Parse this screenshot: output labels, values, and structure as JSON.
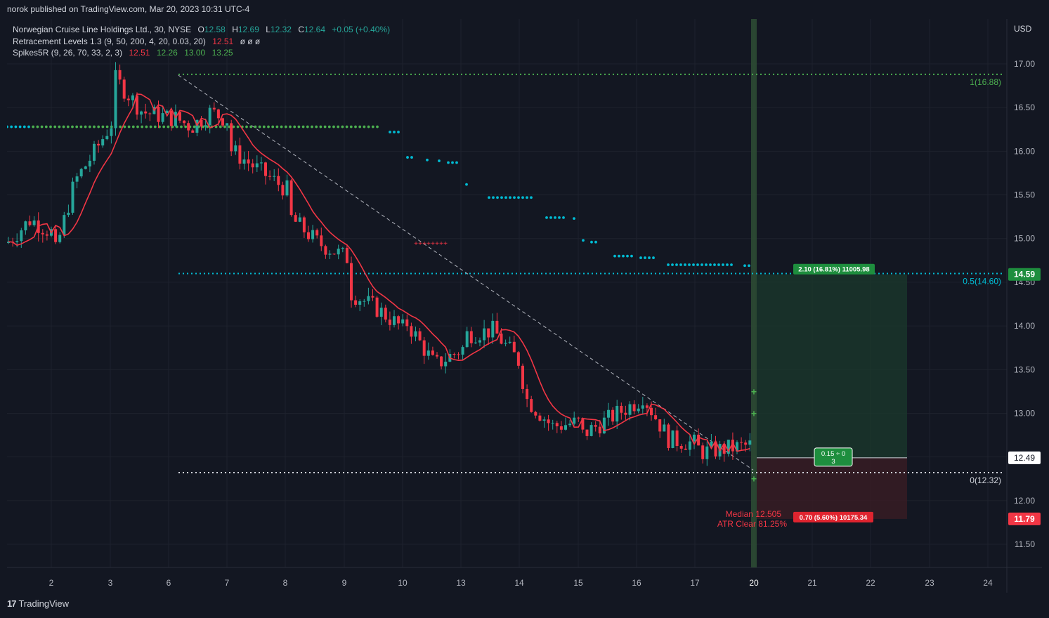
{
  "header": {
    "published_by": "norok published on TradingView.com, Mar 20, 2023 10:31 UTC-4"
  },
  "legend": {
    "symbol": "Norwegian Cruise Line Holdings Ltd., 30, NYSE",
    "o_label": "O",
    "o": "12.58",
    "h_label": "H",
    "h": "12.69",
    "l_label": "L",
    "l": "12.32",
    "c_label": "C",
    "c": "12.64",
    "change": "+0.05 (+0.40%)",
    "ind1_name": "Retracement Levels 1.3 (9, 50, 200, 4, 20, 0.03, 20)",
    "ind1_value": "12.51",
    "ind1_extra": "ø ø ø",
    "ind2_name": "Spikes5R (9, 26, 70, 33, 2, 3)",
    "ind2_v1": "12.51",
    "ind2_v2": "12.26",
    "ind2_v3": "13.00",
    "ind2_v4": "13.25"
  },
  "currency": "USD",
  "footer": {
    "brand": "TradingView",
    "logo_mark": "17"
  },
  "colors": {
    "background": "#131722",
    "up": "#26a69a",
    "down": "#f23645",
    "grid": "#1e222d",
    "cyan": "#00bcd4",
    "green": "#4caf50",
    "target_fill": "#1b3a2c",
    "stop_fill": "#3a1d24"
  },
  "chart_data": {
    "type": "candlestick",
    "symbol": "Norwegian Cruise Line Holdings Ltd.",
    "interval": "30",
    "exchange": "NYSE",
    "currency": "USD",
    "ylim": [
      11.28,
      17.2
    ],
    "y_ticks": [
      17.0,
      16.5,
      16.0,
      15.5,
      15.0,
      14.5,
      14.0,
      13.5,
      13.0,
      12.5,
      12.0,
      11.5
    ],
    "x_ticks": [
      "2",
      "3",
      "6",
      "7",
      "8",
      "9",
      "10",
      "13",
      "14",
      "15",
      "16",
      "17",
      "20",
      "21",
      "22",
      "23",
      "24"
    ],
    "close_path": [
      [
        "2",
        14.95
      ],
      [
        "2",
        15.22
      ],
      [
        "2",
        15.05
      ],
      [
        "3",
        14.85
      ],
      [
        "3",
        15.65
      ],
      [
        "3",
        15.98
      ],
      [
        "3",
        16.35
      ],
      [
        "6",
        16.85
      ],
      [
        "6",
        16.45
      ],
      [
        "6",
        16.38
      ],
      [
        "7",
        16.4
      ],
      [
        "7",
        16.28
      ],
      [
        "7",
        16.45
      ],
      [
        "7",
        16.35
      ],
      [
        "8",
        16.02
      ],
      [
        "8",
        15.78
      ],
      [
        "8",
        15.55
      ],
      [
        "9",
        15.25
      ],
      [
        "9",
        14.95
      ],
      [
        "9",
        14.78
      ],
      [
        "10",
        14.4
      ],
      [
        "10",
        14.2
      ],
      [
        "10",
        13.95
      ],
      [
        "13",
        14.05
      ],
      [
        "13",
        13.55
      ],
      [
        "13",
        13.75
      ],
      [
        "14",
        13.9
      ],
      [
        "14",
        13.95
      ],
      [
        "14",
        13.55
      ],
      [
        "15",
        13.2
      ],
      [
        "15",
        12.85
      ],
      [
        "15",
        12.9
      ],
      [
        "16",
        12.75
      ],
      [
        "16",
        12.95
      ],
      [
        "16",
        13.15
      ],
      [
        "17",
        13.25
      ],
      [
        "17",
        12.7
      ],
      [
        "17",
        12.65
      ],
      [
        "20",
        12.55
      ],
      [
        "20",
        12.64
      ]
    ],
    "lines": [
      {
        "name": "1(16.88)",
        "value": 16.88
      },
      {
        "name": "0.5(14.60)",
        "value": 14.6
      },
      {
        "name": "0(12.32)",
        "value": 12.32
      }
    ],
    "price_labels": {
      "last": "12.49",
      "target": "14.59",
      "stop": "11.79"
    },
    "position": {
      "target_label": "2.10 (16.81%) 11005.98",
      "stop_label": "0.70 (5.60%) 10175.34",
      "entry_label_1": "0.15 ÷ 0",
      "entry_label_2": "3",
      "entry": 12.49,
      "target": 14.59,
      "stop": 11.79
    },
    "annotations": {
      "median": "Median 12.505",
      "atr": "ATR Clear 81.25%"
    }
  }
}
